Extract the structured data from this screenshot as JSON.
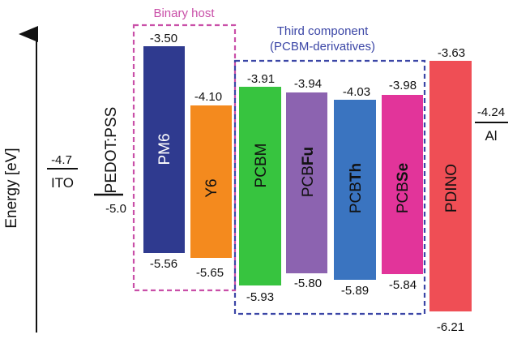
{
  "axis": {
    "label": "Energy [eV]"
  },
  "groups": {
    "binary_host": {
      "label": "Binary host",
      "color": "#c94fa8"
    },
    "third_component": {
      "line1": "Third component",
      "line2": "(PCBM-derivatives)",
      "color": "#3b46a6"
    }
  },
  "electrodes": [
    {
      "name": "ITO",
      "level": "-4.7"
    },
    {
      "name": "Al",
      "level": "-4.24"
    }
  ],
  "pedot": {
    "name": "PEDOT:PSS",
    "level": "-5.0"
  },
  "materials": [
    {
      "key": "pm6",
      "name": "PM6",
      "name_plain": "PM6",
      "name_bold": "",
      "lumo": "-3.50",
      "homo": "-5.56",
      "color": "#2f3a8f"
    },
    {
      "key": "y6",
      "name": "Y6",
      "name_plain": "Y6",
      "name_bold": "",
      "lumo": "-4.10",
      "homo": "-5.65",
      "color": "#f48a1e"
    },
    {
      "key": "pcbm",
      "name": "PCBM",
      "name_plain": "PCBM",
      "name_bold": "",
      "lumo": "-3.91",
      "homo": "-5.93",
      "color": "#37c43f"
    },
    {
      "key": "pcbfu",
      "name": "PCBFu",
      "name_plain": "PCB",
      "name_bold": "Fu",
      "lumo": "-3.94",
      "homo": "-5.80",
      "color": "#8c63b0"
    },
    {
      "key": "pcbth",
      "name": "PCBTh",
      "name_plain": "PCB",
      "name_bold": "Th",
      "lumo": "-4.03",
      "homo": "-5.89",
      "color": "#3a74c0"
    },
    {
      "key": "pcbse",
      "name": "PCBSe",
      "name_plain": "PCB",
      "name_bold": "Se",
      "lumo": "-3.98",
      "homo": "-5.84",
      "color": "#e2349a"
    },
    {
      "key": "pdino",
      "name": "PDINO",
      "name_plain": "PDINO",
      "name_bold": "",
      "lumo": "-3.63",
      "homo": "-6.21",
      "color": "#ef4e55"
    }
  ]
}
